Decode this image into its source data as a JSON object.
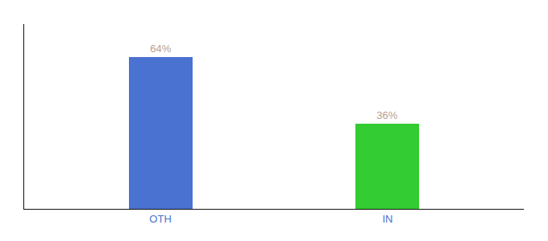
{
  "chart_data": {
    "type": "bar",
    "categories": [
      "OTH",
      "IN"
    ],
    "values": [
      64,
      36
    ],
    "value_labels": [
      "64%",
      "36%"
    ],
    "colors": [
      "#4a72d1",
      "#33cc33"
    ],
    "ylim": [
      0,
      78
    ],
    "data_labels": true,
    "grid": false,
    "tick_labels": "x"
  }
}
